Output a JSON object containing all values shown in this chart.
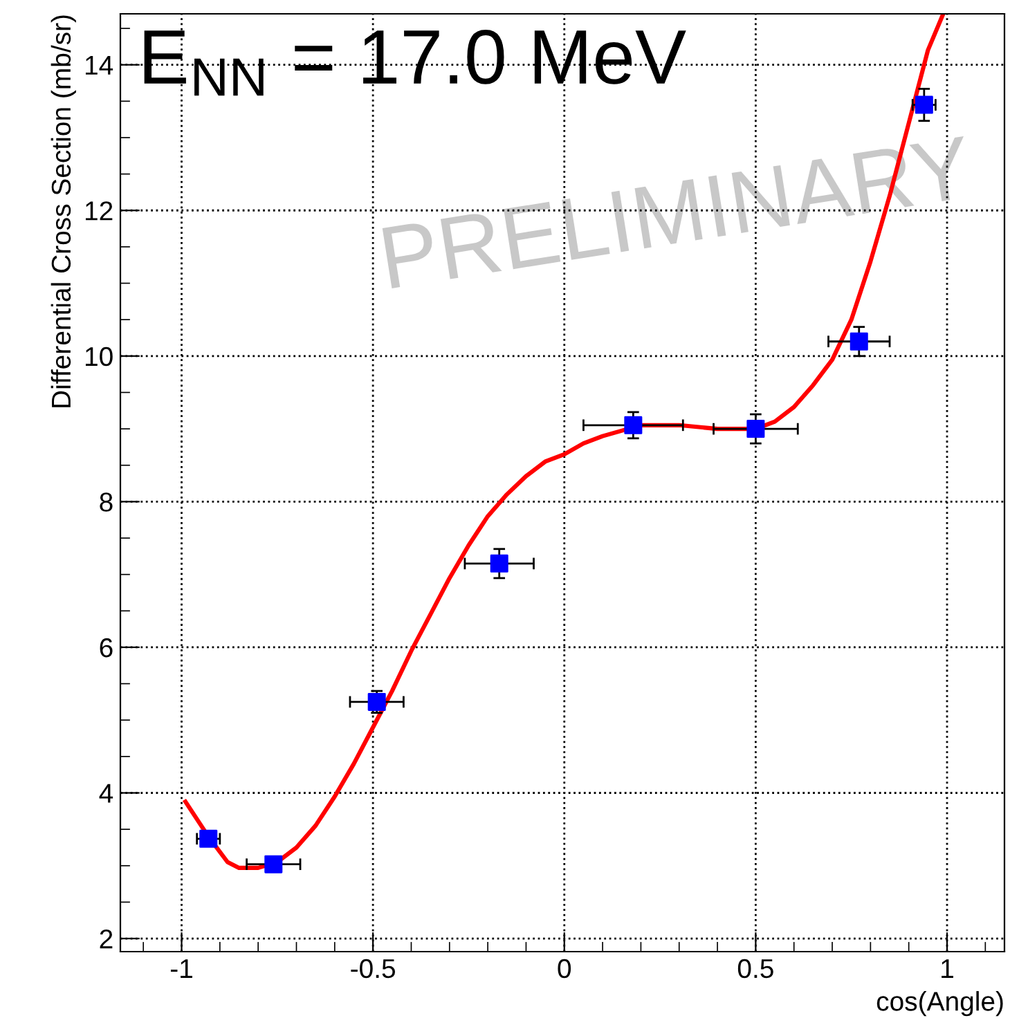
{
  "chart_data": {
    "type": "scatter",
    "title": "E$_{NN}$ = 17.0 MeV",
    "xlabel": "cos(Angle)",
    "ylabel": "Differential Cross Section (mb/sr)",
    "annotations": [
      "PRELIMINARY"
    ],
    "xlim": [
      -1.16,
      1.15
    ],
    "ylim": [
      1.82,
      14.7
    ],
    "xticks": [
      -1,
      -0.5,
      0,
      0.5,
      1
    ],
    "yticks": [
      2,
      4,
      6,
      8,
      10,
      12,
      14
    ],
    "grid": true,
    "marker": "square",
    "series": [
      {
        "color": "#0000ff",
        "x": [
          -0.93,
          -0.76,
          -0.49,
          -0.17,
          0.18,
          0.5,
          0.77,
          0.94
        ],
        "values": [
          3.37,
          3.02,
          5.25,
          7.15,
          9.05,
          9.0,
          10.2,
          13.45
        ],
        "errors": [
          null,
          null,
          0.15,
          0.2,
          0.18,
          0.2,
          0.2,
          0.22
        ],
        "xerrors": [
          0.03,
          0.07,
          0.07,
          0.09,
          0.13,
          0.11,
          0.08,
          0.03
        ]
      },
      {
        "type": "line",
        "color": "#ff0000",
        "marker": "none",
        "line_style": "solid",
        "x": [
          -0.99,
          -0.93,
          -0.88,
          -0.85,
          -0.8,
          -0.75,
          -0.7,
          -0.65,
          -0.6,
          -0.55,
          -0.5,
          -0.45,
          -0.4,
          -0.35,
          -0.3,
          -0.25,
          -0.2,
          -0.15,
          -0.1,
          -0.05,
          0,
          0.05,
          0.1,
          0.2,
          0.3,
          0.4,
          0.5,
          0.55,
          0.6,
          0.65,
          0.7,
          0.75,
          0.8,
          0.85,
          0.9,
          0.95,
          0.99
        ],
        "values": [
          3.88,
          3.4,
          3.05,
          2.97,
          2.97,
          3.05,
          3.25,
          3.55,
          3.95,
          4.4,
          4.9,
          5.4,
          5.95,
          6.45,
          6.95,
          7.4,
          7.8,
          8.1,
          8.35,
          8.55,
          8.65,
          8.8,
          8.9,
          9.05,
          9.05,
          9.0,
          9.0,
          9.1,
          9.3,
          9.6,
          9.95,
          10.5,
          11.3,
          12.2,
          13.2,
          14.2,
          14.7
        ]
      }
    ]
  }
}
